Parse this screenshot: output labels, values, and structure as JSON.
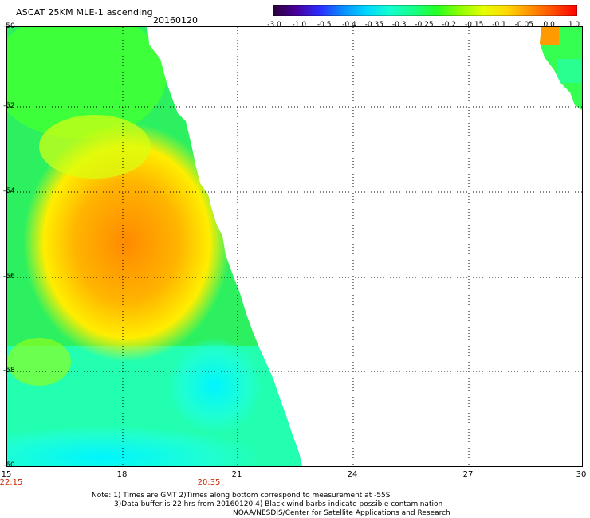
{
  "header": {
    "title": "ASCAT 25KM MLE-1 ascending",
    "date": "20160120"
  },
  "colorbar": {
    "colors": [
      "#2b0038",
      "#48009a",
      "#2a2cff",
      "#0a8dff",
      "#00d6ff",
      "#14ffcf",
      "#16ff86",
      "#25ff25",
      "#8dff00",
      "#e4ff00",
      "#ffd700",
      "#ff9100",
      "#ff4a00",
      "#ff0000"
    ],
    "labels": [
      "-3.0",
      "-1.0",
      "-0.5",
      "-0.4",
      "-0.35",
      "-0.3",
      "-0.25",
      "-0.2",
      "-0.15",
      "-0.1",
      "-0.05",
      "0.0",
      "1.0"
    ]
  },
  "axes": {
    "x_ticks": [
      "15",
      "18",
      "21",
      "24",
      "27",
      "30"
    ],
    "y_ticks": [
      "-50",
      "-52",
      "-54",
      "-56",
      "-58",
      "-60"
    ],
    "times": [
      "22:15",
      "20:35"
    ]
  },
  "notes": {
    "line1": "Note: 1) Times are GMT 2)Times along bottom correspond to measurement at -55S",
    "line2": "3)Data buffer is 22 hrs from 20160120 4) Black wind barbs indicate possible contamination",
    "line3": "NOAA/NESDIS/Center for Satellite Applications and Research"
  }
}
